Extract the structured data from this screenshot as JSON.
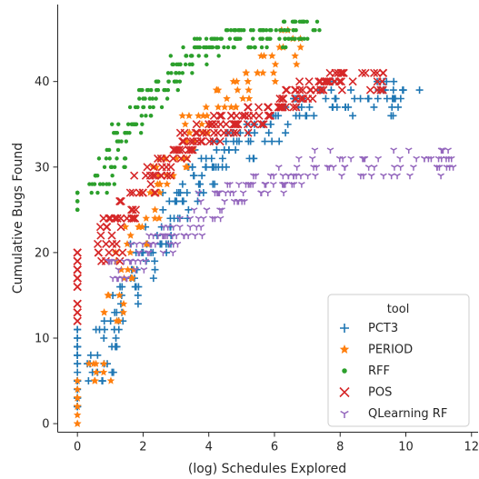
{
  "chart_data": {
    "type": "scatter",
    "xlabel": "(log) Schedules Explored",
    "ylabel": "Cumulative Bugs Found",
    "xlim": [
      -0.6,
      12.2
    ],
    "ylim": [
      -1,
      49
    ],
    "xticks": [
      "0",
      "2",
      "4",
      "6",
      "8",
      "10",
      "12"
    ],
    "yticks": [
      "0",
      "10",
      "20",
      "30",
      "40"
    ],
    "grid": false,
    "legend": {
      "title": "tool",
      "position": "lower-right"
    },
    "series": [
      {
        "name": "PCT3",
        "marker": "plus",
        "color": "#1f77b4",
        "anchors": [
          [
            0,
            4
          ],
          [
            0,
            9
          ],
          [
            0.7,
            7
          ],
          [
            1,
            11
          ],
          [
            1.5,
            15
          ],
          [
            2,
            19
          ],
          [
            2.5,
            22
          ],
          [
            3,
            25
          ],
          [
            3.5,
            28
          ],
          [
            4,
            30
          ],
          [
            4.5,
            32
          ],
          [
            5,
            33
          ],
          [
            6,
            35
          ],
          [
            7,
            37
          ],
          [
            8,
            38
          ],
          [
            9,
            39
          ],
          [
            10,
            38
          ]
        ],
        "points_per_anchor": 14,
        "spread": [
          0.45,
          2.2
        ]
      },
      {
        "name": "PERIOD",
        "marker": "star",
        "color": "#ff7f0e",
        "anchors": [
          [
            0,
            1
          ],
          [
            0,
            3
          ],
          [
            0.7,
            6
          ],
          [
            1.1,
            13
          ],
          [
            1.4,
            18
          ],
          [
            1.8,
            22
          ],
          [
            2.2,
            26
          ],
          [
            2.6,
            29
          ],
          [
            3,
            31
          ],
          [
            3.5,
            34
          ],
          [
            4,
            36
          ],
          [
            4.5,
            38
          ],
          [
            5,
            40
          ],
          [
            5.8,
            42
          ],
          [
            6.5,
            44
          ]
        ],
        "points_per_anchor": 9,
        "spread": [
          0.35,
          2.0
        ]
      },
      {
        "name": "RFF",
        "marker": "dot",
        "color": "#2ca02c",
        "anchors": [
          [
            0,
            26
          ],
          [
            0.7,
            28
          ],
          [
            1.1,
            31
          ],
          [
            1.5,
            34
          ],
          [
            1.9,
            36
          ],
          [
            2.3,
            38
          ],
          [
            2.7,
            40
          ],
          [
            3.1,
            42
          ],
          [
            3.5,
            43
          ],
          [
            4,
            44
          ],
          [
            4.5,
            45
          ],
          [
            5,
            45
          ],
          [
            5.5,
            45
          ],
          [
            6,
            45
          ],
          [
            6.5,
            46
          ],
          [
            7,
            46
          ]
        ],
        "points_per_anchor": 16,
        "spread": [
          0.45,
          1.3
        ]
      },
      {
        "name": "POS",
        "marker": "x",
        "color": "#d62728",
        "anchors": [
          [
            0,
            13
          ],
          [
            0,
            17
          ],
          [
            0,
            19
          ],
          [
            1,
            20
          ],
          [
            1,
            23
          ],
          [
            1.5,
            25
          ],
          [
            2,
            28
          ],
          [
            2.5,
            30
          ],
          [
            3,
            32
          ],
          [
            3.5,
            33
          ],
          [
            4,
            34
          ],
          [
            4.5,
            35
          ],
          [
            5,
            35
          ],
          [
            5.5,
            36
          ],
          [
            6,
            37
          ],
          [
            6.5,
            38
          ],
          [
            7,
            39
          ],
          [
            7.5,
            40
          ],
          [
            8,
            40
          ],
          [
            9,
            40
          ]
        ],
        "points_per_anchor": 12,
        "spread": [
          0.4,
          1.5
        ]
      },
      {
        "name": "QLearning RF",
        "marker": "tri",
        "color": "#9467bd",
        "anchors": [
          [
            1.2,
            18
          ],
          [
            1.6,
            19
          ],
          [
            2,
            20
          ],
          [
            2.5,
            21
          ],
          [
            3,
            22
          ],
          [
            3.5,
            23
          ],
          [
            4,
            25
          ],
          [
            4.5,
            26
          ],
          [
            5,
            27
          ],
          [
            5.5,
            28
          ],
          [
            6,
            28
          ],
          [
            6.5,
            29
          ],
          [
            7,
            30
          ],
          [
            8,
            30
          ],
          [
            9,
            30
          ],
          [
            10,
            30
          ],
          [
            11,
            30
          ],
          [
            11.2,
            31
          ]
        ],
        "points_per_anchor": 10,
        "spread": [
          0.45,
          1.6
        ]
      }
    ]
  }
}
